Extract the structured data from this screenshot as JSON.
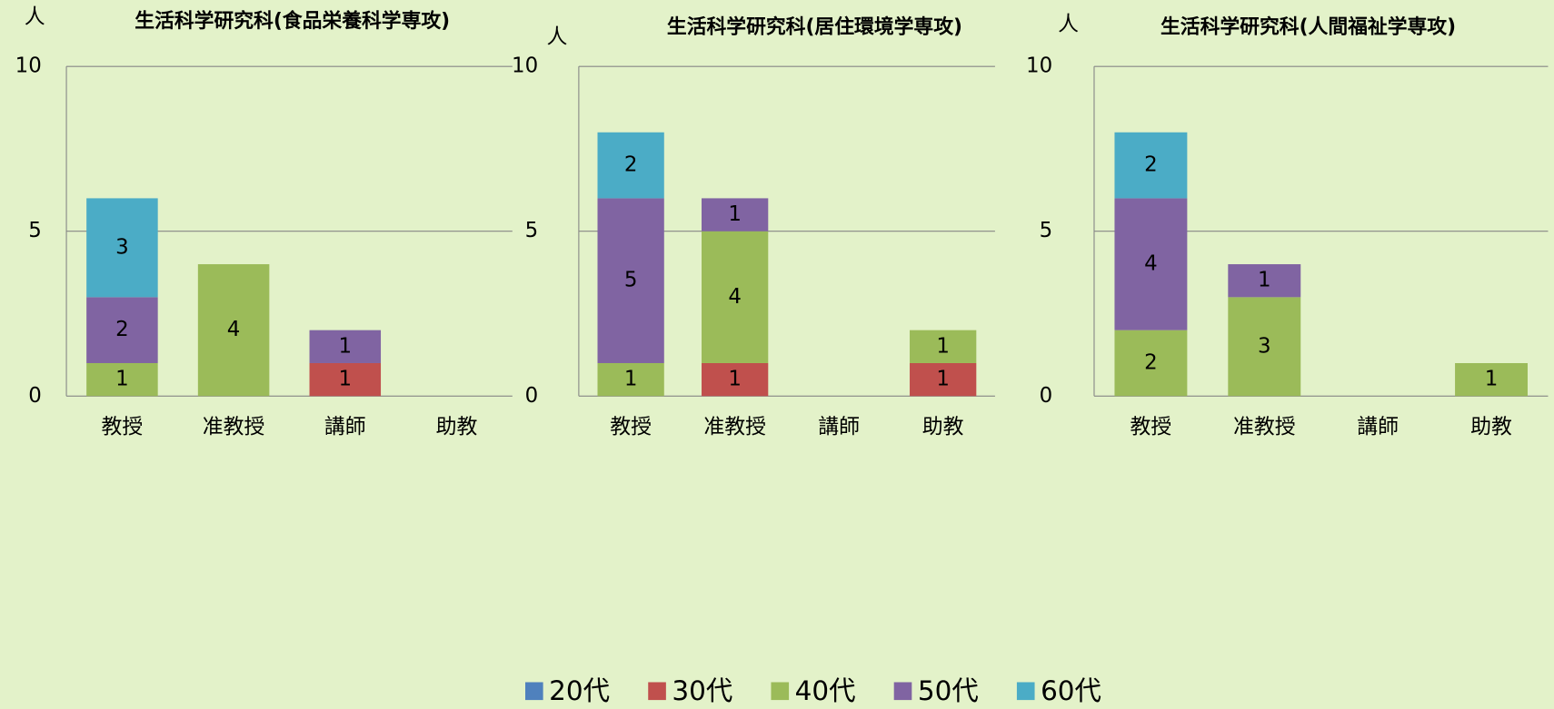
{
  "legend": [
    {
      "name": "20代",
      "color": "#4f81bd"
    },
    {
      "name": "30代",
      "color": "#c0504d"
    },
    {
      "name": "40代",
      "color": "#9bbb59"
    },
    {
      "name": "50代",
      "color": "#8064a2"
    },
    {
      "name": "60代",
      "color": "#4bacc6"
    }
  ],
  "chart_data": [
    {
      "type": "bar",
      "stacked": true,
      "title": "生活科学研究科(食品栄養科学専攻)",
      "ylabel": "人",
      "categories": [
        "教授",
        "准教授",
        "講師",
        "助教"
      ],
      "series": [
        {
          "values": [
            null,
            null,
            null,
            null
          ]
        },
        {
          "values": [
            null,
            null,
            1,
            null
          ]
        },
        {
          "values": [
            1,
            4,
            null,
            null
          ]
        },
        {
          "values": [
            2,
            null,
            1,
            null
          ]
        },
        {
          "values": [
            3,
            null,
            null,
            null
          ]
        }
      ],
      "ylim": [
        0,
        10
      ],
      "yticks": [
        0,
        5,
        10
      ],
      "grid": true
    },
    {
      "type": "bar",
      "stacked": true,
      "title": "生活科学研究科(居住環境学専攻)",
      "ylabel": "人",
      "categories": [
        "教授",
        "准教授",
        "講師",
        "助教"
      ],
      "series": [
        {
          "values": [
            null,
            null,
            null,
            null
          ]
        },
        {
          "values": [
            null,
            1,
            null,
            1
          ]
        },
        {
          "values": [
            1,
            4,
            null,
            1
          ]
        },
        {
          "values": [
            5,
            1,
            null,
            null
          ]
        },
        {
          "values": [
            2,
            null,
            null,
            null
          ]
        }
      ],
      "ylim": [
        0,
        10
      ],
      "yticks": [
        0,
        5,
        10
      ],
      "grid": true
    },
    {
      "type": "bar",
      "stacked": true,
      "title": "生活科学研究科(人間福祉学専攻)",
      "ylabel": "人",
      "categories": [
        "教授",
        "准教授",
        "講師",
        "助教"
      ],
      "series": [
        {
          "values": [
            null,
            null,
            null,
            null
          ]
        },
        {
          "values": [
            null,
            null,
            null,
            null
          ]
        },
        {
          "values": [
            2,
            3,
            null,
            1
          ]
        },
        {
          "values": [
            4,
            1,
            null,
            null
          ]
        },
        {
          "values": [
            2,
            null,
            null,
            null
          ]
        }
      ],
      "ylim": [
        0,
        10
      ],
      "yticks": [
        0,
        5,
        10
      ],
      "grid": true
    }
  ]
}
